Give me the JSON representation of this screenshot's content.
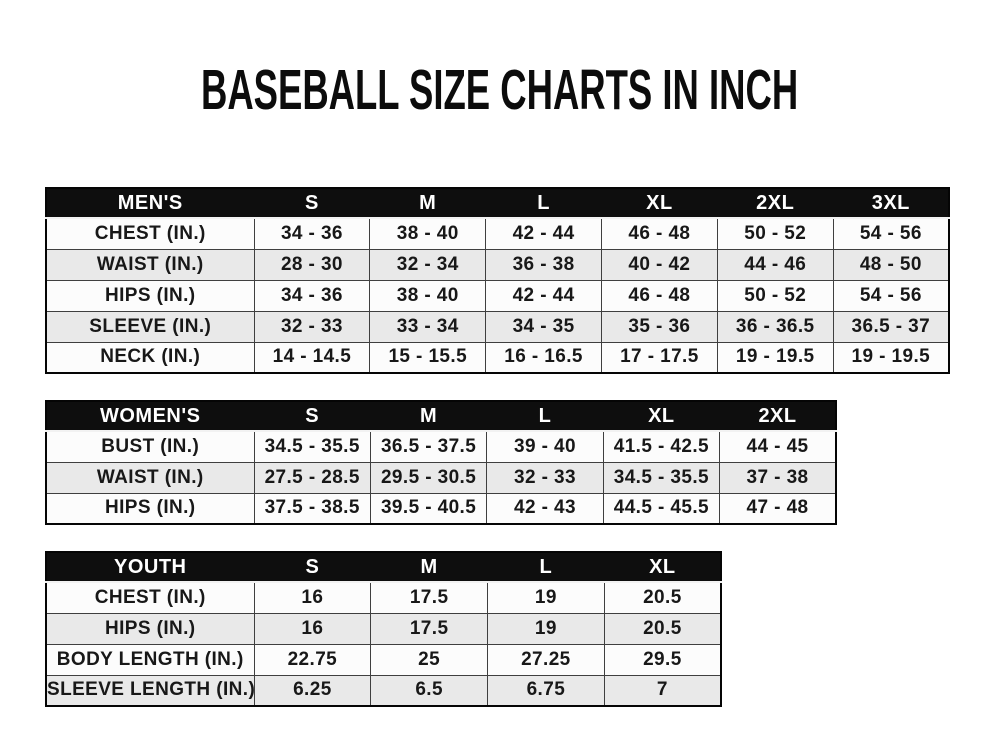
{
  "page": {
    "title": "BASEBALL SIZE CHARTS IN INCH"
  },
  "colors": {
    "header_bg": "#0e0e0e",
    "header_text": "#ffffff",
    "row_bg": "#fcfcfc",
    "row_alt_bg": "#e9e9e9",
    "border": "#3f3f3f",
    "title_text": "#0c0c0c"
  },
  "tables": [
    {
      "id": "mens",
      "title": "MEN'S",
      "header": [
        "MEN'S",
        "S",
        "M",
        "L",
        "XL",
        "2XL",
        "3XL"
      ],
      "rows": [
        [
          "CHEST (IN.)",
          "34 - 36",
          "38 - 40",
          "42 - 44",
          "46 - 48",
          "50 - 52",
          "54 - 56"
        ],
        [
          "WAIST (IN.)",
          "28 - 30",
          "32 - 34",
          "36 - 38",
          "40 - 42",
          "44 - 46",
          "48 - 50"
        ],
        [
          "HIPS (IN.)",
          "34 - 36",
          "38 - 40",
          "42 - 44",
          "46 - 48",
          "50 - 52",
          "54 - 56"
        ],
        [
          "SLEEVE (IN.)",
          "32 - 33",
          "33 - 34",
          "34 - 35",
          "35 - 36",
          "36 - 36.5",
          "36.5 - 37"
        ],
        [
          "NECK (IN.)",
          "14 - 14.5",
          "15 - 15.5",
          "16 - 16.5",
          "17 - 17.5",
          "19 - 19.5",
          "19 - 19.5"
        ]
      ]
    },
    {
      "id": "womens",
      "title": "WOMEN'S",
      "header": [
        "WOMEN'S",
        "S",
        "M",
        "L",
        "XL",
        "2XL"
      ],
      "rows": [
        [
          "BUST (IN.)",
          "34.5 - 35.5",
          "36.5 - 37.5",
          "39 - 40",
          "41.5 - 42.5",
          "44 - 45"
        ],
        [
          "WAIST (IN.)",
          "27.5 - 28.5",
          "29.5 - 30.5",
          "32 - 33",
          "34.5 - 35.5",
          "37 - 38"
        ],
        [
          "HIPS (IN.)",
          "37.5 - 38.5",
          "39.5 - 40.5",
          "42 - 43",
          "44.5 - 45.5",
          "47 - 48"
        ]
      ]
    },
    {
      "id": "youth",
      "title": "YOUTH",
      "header": [
        "YOUTH",
        "S",
        "M",
        "L",
        "XL"
      ],
      "rows": [
        [
          "CHEST (IN.)",
          "16",
          "17.5",
          "19",
          "20.5"
        ],
        [
          "HIPS (IN.)",
          "16",
          "17.5",
          "19",
          "20.5"
        ],
        [
          "BODY LENGTH (IN.)",
          "22.75",
          "25",
          "27.25",
          "29.5"
        ],
        [
          "SLEEVE LENGTH (IN.)",
          "6.25",
          "6.5",
          "6.75",
          "7"
        ]
      ]
    }
  ]
}
